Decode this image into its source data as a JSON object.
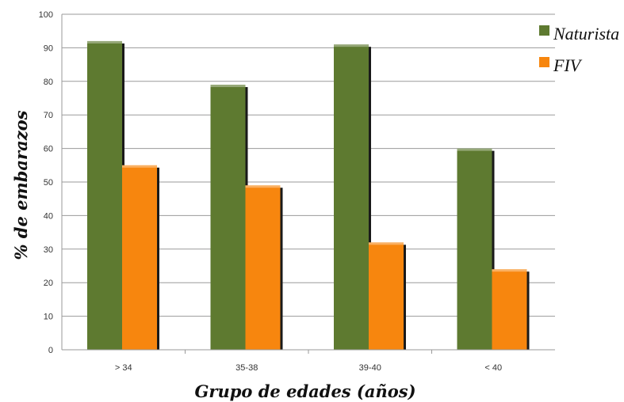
{
  "chart_data": {
    "type": "bar",
    "categories": [
      "> 34",
      "35-38",
      "39-40",
      "< 40"
    ],
    "series": [
      {
        "name": "Naturista",
        "values": [
          92,
          79,
          91,
          60
        ],
        "color": "#5e7a30"
      },
      {
        "name": "FIV",
        "values": [
          55,
          49,
          32,
          24
        ],
        "color": "#f7860e"
      }
    ],
    "xlabel": "Grupo de edades (años)",
    "ylabel": "% de embarazos",
    "ylim": [
      0,
      100
    ],
    "yticks": [
      "0",
      "10",
      "20",
      "30",
      "40",
      "50",
      "60",
      "70",
      "80",
      "90",
      "100"
    ],
    "grid": true,
    "legend": "top-right"
  }
}
